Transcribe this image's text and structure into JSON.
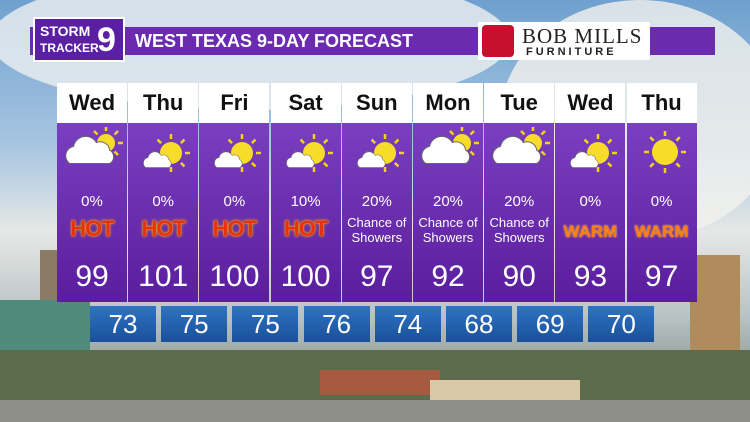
{
  "header": {
    "logo": {
      "line1": "STORM",
      "line2": "TRACKER",
      "number": "9"
    },
    "title": "WEST TEXAS 9-DAY FORECAST",
    "sponsor": {
      "name": "BOB MILLS",
      "tagline": "FURNITURE"
    }
  },
  "days": [
    {
      "day": "Wed",
      "precip": "0%",
      "condition": "HOT",
      "high": 99,
      "low": 73
    },
    {
      "day": "Thu",
      "precip": "0%",
      "condition": "HOT",
      "high": 101,
      "low": 75
    },
    {
      "day": "Fri",
      "precip": "0%",
      "condition": "HOT",
      "high": 100,
      "low": 75
    },
    {
      "day": "Sat",
      "precip": "10%",
      "condition": "HOT",
      "high": 100,
      "low": 76
    },
    {
      "day": "Sun",
      "precip": "20%",
      "condition": "Chance of Showers",
      "high": 97,
      "low": 74
    },
    {
      "day": "Mon",
      "precip": "20%",
      "condition": "Chance of Showers",
      "high": 92,
      "low": 68
    },
    {
      "day": "Tue",
      "precip": "20%",
      "condition": "Chance of Showers",
      "high": 90,
      "low": 69
    },
    {
      "day": "Wed",
      "precip": "0%",
      "condition": "WARM",
      "high": 93,
      "low": 70
    },
    {
      "day": "Thu",
      "precip": "0%",
      "condition": "WARM",
      "high": 97
    }
  ]
}
